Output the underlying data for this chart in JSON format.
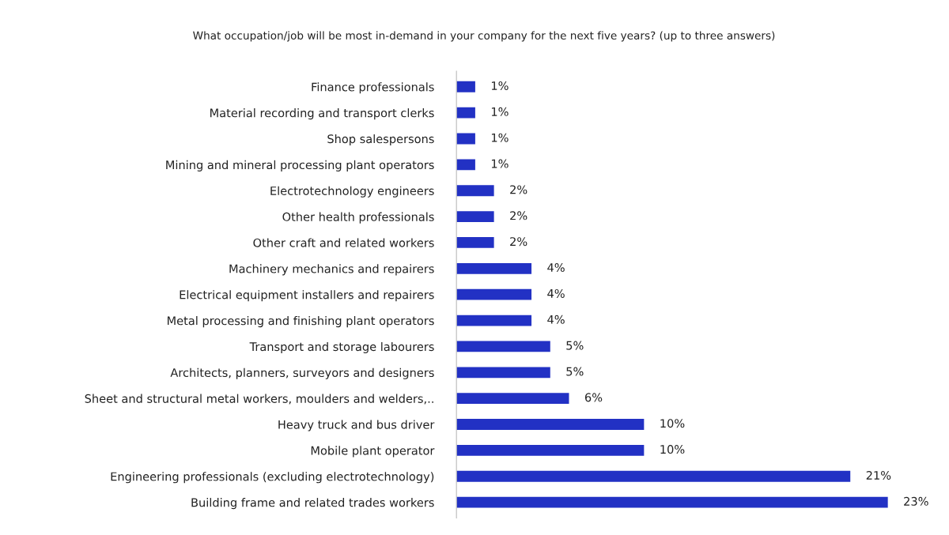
{
  "chart_data": {
    "type": "bar",
    "orientation": "horizontal",
    "title": "What occupation/job will be most in-demand in your company for the next five years? (up to three answers)",
    "categories": [
      "Finance professionals",
      "Material recording and transport clerks",
      "Shop salespersons",
      "Mining and mineral processing plant operators",
      "Electrotechnology engineers",
      "Other health professionals",
      "Other craft and related workers",
      "Machinery mechanics and repairers",
      "Electrical equipment installers and repairers",
      "Metal processing and finishing plant operators",
      "Transport and storage labourers",
      "Architects, planners, surveyors and designers",
      "Sheet and structural metal workers, moulders and welders,..",
      "Heavy truck and bus driver",
      "Mobile plant operator",
      "Engineering professionals (excluding electrotechnology)",
      "Building frame and related trades workers"
    ],
    "values": [
      1,
      1,
      1,
      1,
      2,
      2,
      2,
      4,
      4,
      4,
      5,
      5,
      6,
      10,
      10,
      21,
      23
    ],
    "value_labels": [
      "1%",
      "1%",
      "1%",
      "1%",
      "2%",
      "2%",
      "2%",
      "4%",
      "4%",
      "4%",
      "5%",
      "5%",
      "6%",
      "10%",
      "10%",
      "21%",
      "23%"
    ],
    "color": "#2231c4",
    "tick_labels": "y",
    "grid": false
  }
}
